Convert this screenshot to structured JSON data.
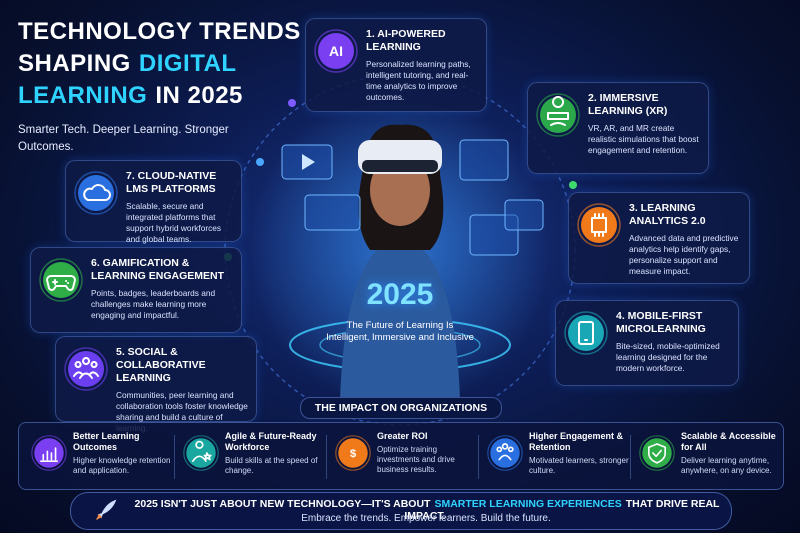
{
  "header": {
    "line1": "TECHNOLOGY TRENDS",
    "line2": "SHAPING",
    "line2_highlight": "DIGITAL",
    "line3_highlight": "LEARNING",
    "line3": "IN 2025",
    "subtitle": "Smarter Tech. Deeper Learning. Stronger Outcomes."
  },
  "center": {
    "year": "2025",
    "tagline": "The Future of Learning Is Intelligent, Immersive and Inclusive"
  },
  "trends": [
    {
      "title": "1. AI-POWERED LEARNING",
      "icon_text": "AI",
      "description": "Personalized learning paths, intelligent tutoring, and real-time analytics to improve outcomes."
    },
    {
      "title": "2. IMMERSIVE LEARNING (XR)",
      "description": "VR, AR, and MR create realistic simulations that boost engagement and retention."
    },
    {
      "title": "3. LEARNING ANALYTICS 2.0",
      "description": "Advanced data and predictive analytics help identify gaps, personalize support and measure impact."
    },
    {
      "title": "4. MOBILE-FIRST MICROLEARNING",
      "description": "Bite-sized, mobile-optimized learning designed for the modern workforce."
    },
    {
      "title": "5. SOCIAL & COLLABORATIVE LEARNING",
      "description": "Communities, peer learning and collaboration tools foster knowledge sharing and build a culture of learning."
    },
    {
      "title": "6. GAMIFICATION & LEARNING ENGAGEMENT",
      "description": "Points, badges, leaderboards and challenges make learning more engaging and impactful."
    },
    {
      "title": "7. CLOUD-NATIVE LMS PLATFORMS",
      "description": "Scalable, secure and integrated platforms that support hybrid workforces and global teams."
    }
  ],
  "impact": {
    "title": "THE IMPACT ON ORGANIZATIONS",
    "items": [
      {
        "title": "Better Learning Outcomes",
        "description": "Higher knowledge retention and application."
      },
      {
        "title": "Agile & Future-Ready Workforce",
        "description": "Build skills at the speed of change."
      },
      {
        "title": "Greater ROI",
        "icon_text": "$",
        "description": "Optimize training investments and drive business results."
      },
      {
        "title": "Higher Engagement & Retention",
        "description": "Motivated learners, stronger culture."
      },
      {
        "title": "Scalable & Accessible for All",
        "description": "Deliver learning anytime, anywhere, on any device."
      }
    ]
  },
  "footer": {
    "line1_start": "2025 ISN'T JUST ABOUT NEW TECHNOLOGY—IT'S ABOUT",
    "line1_highlight": "SMARTER LEARNING EXPERIENCES",
    "line1_end": "THAT DRIVE REAL IMPACT.",
    "line2": "Embrace the trends. Empower learners. Build the future."
  }
}
